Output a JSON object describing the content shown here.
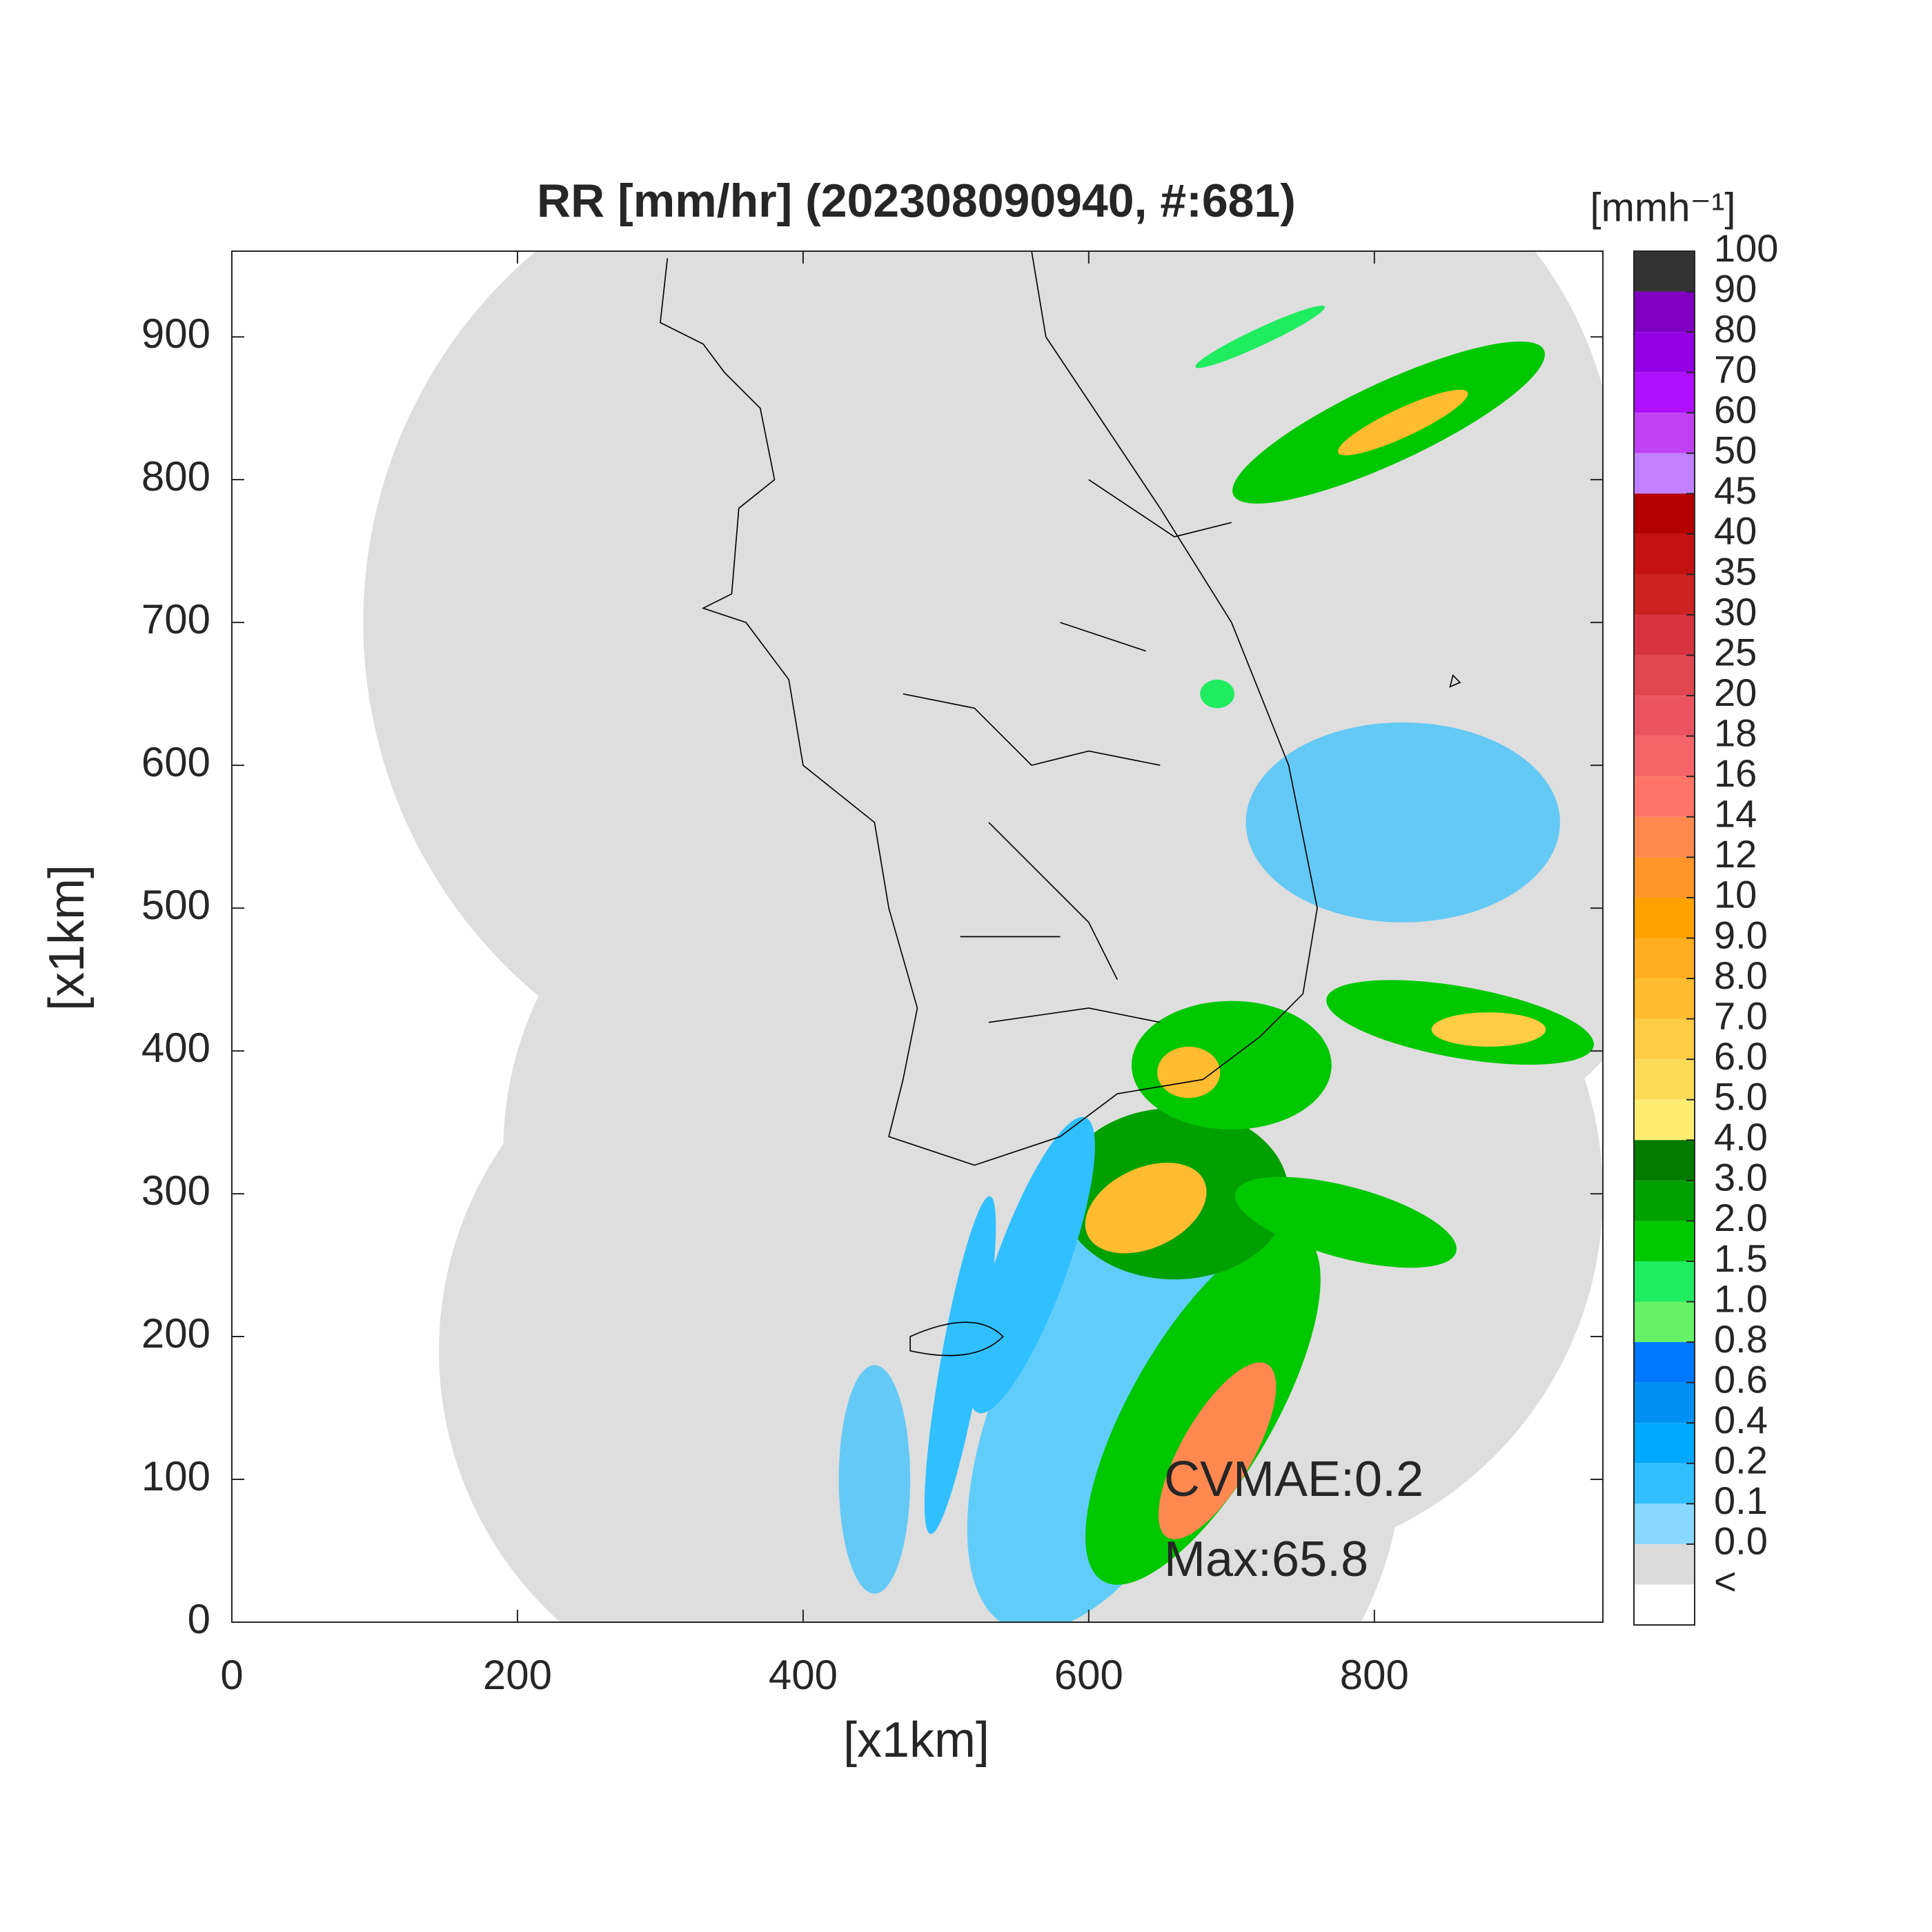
{
  "chart_data": {
    "type": "map",
    "title": "RR [mm/hr] (202308090940, #:681)",
    "xlabel": "[x1km]",
    "ylabel": "[x1km]",
    "xlim": [
      0,
      960
    ],
    "ylim": [
      0,
      960
    ],
    "xticks": [
      0,
      200,
      400,
      600,
      800
    ],
    "yticks": [
      0,
      100,
      200,
      300,
      400,
      500,
      600,
      700,
      800,
      900
    ],
    "annotations": [
      "CVMAE:0.2",
      "Max:65.8"
    ],
    "colorbar": {
      "label": "[mmh⁻¹]",
      "ticks": [
        100,
        90,
        80,
        70,
        60,
        50,
        45,
        40,
        35,
        30,
        25,
        20,
        18,
        16,
        14,
        12,
        10,
        {
          "value": 9,
          "label": "9.0"
        },
        {
          "value": 8,
          "label": "8.0"
        },
        {
          "value": 7,
          "label": "7.0"
        },
        {
          "value": 6,
          "label": "6.0"
        },
        {
          "value": 5,
          "label": "5.0"
        },
        {
          "value": 4,
          "label": "4.0"
        },
        {
          "value": 3,
          "label": "3.0"
        },
        {
          "value": 2,
          "label": "2.0"
        },
        1.5,
        {
          "value": 1,
          "label": "1.0"
        },
        0.8,
        0.6,
        0.4,
        0.2,
        0.1,
        {
          "value": 0,
          "label": "0.0"
        }
      ],
      "under_label": "<",
      "colors": [
        "#333333",
        "#7f00bf",
        "#9400e6",
        "#ae10ff",
        "#c040f4",
        "#c080ff",
        "#b40000",
        "#c41212",
        "#cc2222",
        "#d63240",
        "#e04650",
        "#ea5460",
        "#f46468",
        "#ff7466",
        "#ff8850",
        "#ff9428",
        "#ffa200",
        "#ffae20",
        "#ffbc30",
        "#ffcc44",
        "#ffdc58",
        "#ffee72",
        "#007a00",
        "#00a000",
        "#00c800",
        "#20ec60",
        "#66f266",
        "#0077ff",
        "#0090f2",
        "#00a8ff",
        "#30c0ff",
        "#88d8ff",
        "#dcdcdc",
        "#ffffff"
      ]
    }
  }
}
